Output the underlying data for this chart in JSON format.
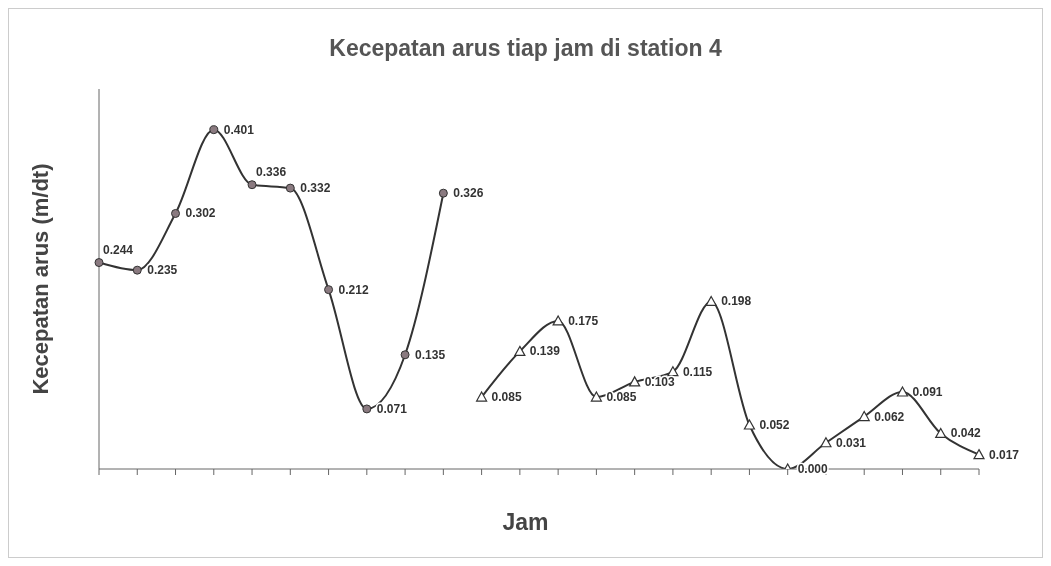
{
  "chart_data": {
    "type": "line",
    "title": "Kecepatan arus tiap jam di station 4",
    "xlabel": "Jam",
    "ylabel": "Kecepatan arus (m/dt)",
    "categories": [
      null,
      null,
      null,
      null,
      null,
      null,
      null,
      null,
      null,
      null,
      null,
      null,
      null,
      null,
      null,
      null,
      null,
      null,
      null,
      null,
      null,
      null,
      null,
      null
    ],
    "series": [
      {
        "color": "#333333",
        "marker": "circle",
        "values": [
          0.244,
          0.235,
          0.302,
          0.401,
          0.336,
          0.332,
          0.212,
          0.071,
          0.135,
          0.326,
          null,
          null,
          null,
          null,
          null,
          null,
          null,
          null,
          null,
          null,
          null,
          null,
          null,
          null
        ],
        "value_labels": [
          "0.244",
          "0.235",
          "0.302",
          "0.401",
          "0.336",
          "0.332",
          "0.212",
          "0.071",
          "0.135",
          "0.326",
          null,
          null,
          null,
          null,
          null,
          null,
          null,
          null,
          null,
          null,
          null,
          null,
          null,
          null
        ]
      },
      {
        "color": "#333333",
        "marker": "triangle",
        "values": [
          null,
          null,
          null,
          null,
          null,
          null,
          null,
          null,
          null,
          null,
          0.085,
          0.139,
          0.175,
          0.085,
          0.103,
          0.115,
          0.198,
          0.052,
          0.0,
          0.031,
          0.062,
          0.091,
          0.042,
          0.017
        ],
        "value_labels": [
          null,
          null,
          null,
          null,
          null,
          null,
          null,
          null,
          null,
          null,
          "0.085",
          "0.139",
          "0.175",
          "0.085",
          "0.103",
          "0.115",
          "0.198",
          "0.052",
          "0.000",
          "0.031",
          "0.062",
          "0.091",
          "0.042",
          "0.017"
        ]
      }
    ],
    "grid": false,
    "legend": false
  }
}
